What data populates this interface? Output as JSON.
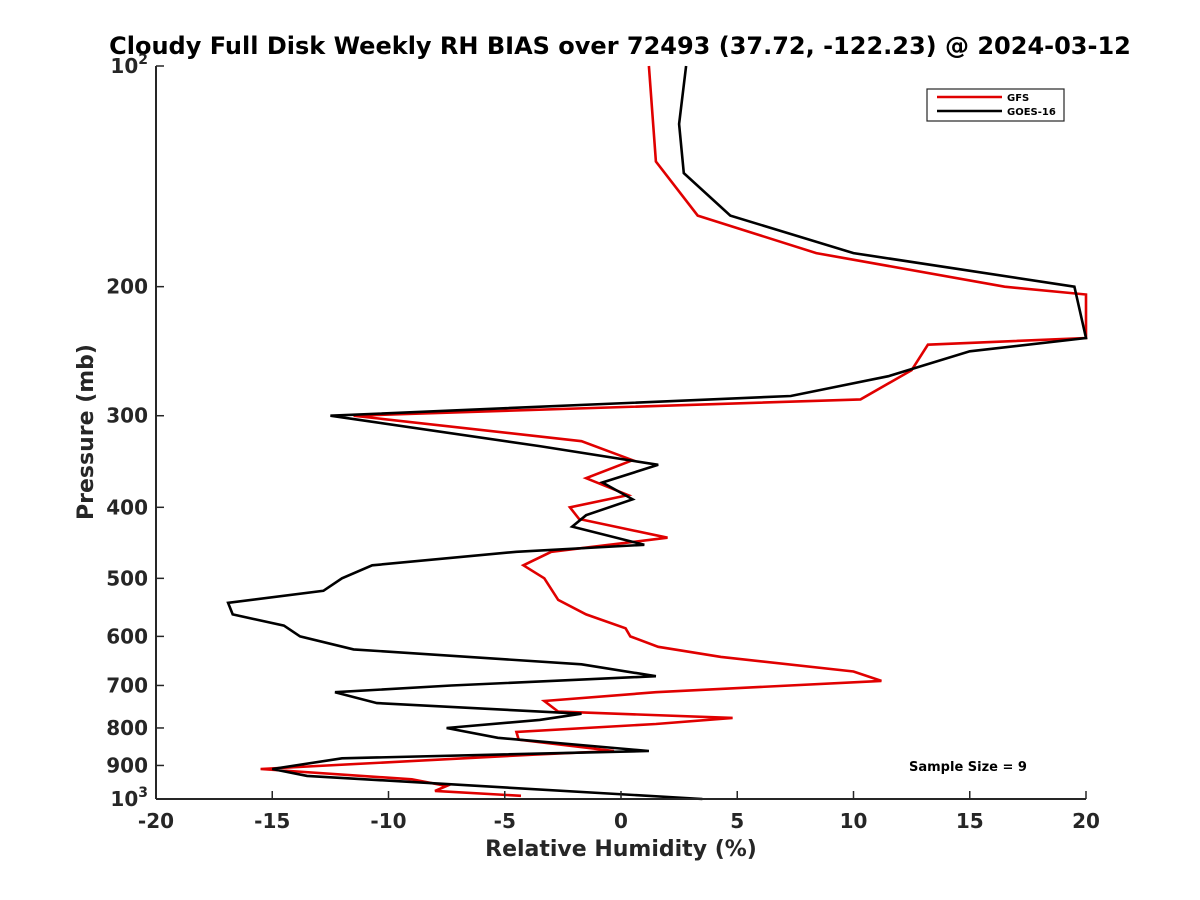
{
  "chart_data": {
    "type": "line",
    "title": "Cloudy Full Disk Weekly RH BIAS over 72493 (37.72, -122.23) @ 2024-03-12",
    "xlabel": "Relative Humidity (%)",
    "ylabel": "Pressure (mb)",
    "xlim": [
      -20,
      20
    ],
    "ylim": [
      100,
      1000
    ],
    "y_scale": "log",
    "y_reversed": true,
    "x_ticks": [
      -20,
      -15,
      -10,
      -5,
      0,
      5,
      10,
      15,
      20
    ],
    "y_ticks": [
      {
        "value": 100,
        "base": "10",
        "exp": "2"
      },
      {
        "value": 200,
        "label": "200"
      },
      {
        "value": 300,
        "label": "300"
      },
      {
        "value": 400,
        "label": "400"
      },
      {
        "value": 500,
        "label": "500"
      },
      {
        "value": 600,
        "label": "600"
      },
      {
        "value": 700,
        "label": "700"
      },
      {
        "value": 800,
        "label": "800"
      },
      {
        "value": 900,
        "label": "900"
      },
      {
        "value": 1000,
        "base": "10",
        "exp": "3"
      }
    ],
    "grid": false,
    "legend_position": "top-right",
    "annotation": "Sample Size = 9",
    "series": [
      {
        "name": "GFS",
        "color": "#e00000",
        "points": [
          [
            1.2,
            100
          ],
          [
            1.5,
            135
          ],
          [
            3.3,
            160
          ],
          [
            8.4,
            180
          ],
          [
            16.5,
            200
          ],
          [
            20.0,
            205
          ],
          [
            20.0,
            235
          ],
          [
            13.2,
            240
          ],
          [
            12.5,
            260
          ],
          [
            10.3,
            285
          ],
          [
            -11.5,
            300
          ],
          [
            -1.7,
            325
          ],
          [
            0.5,
            345
          ],
          [
            -1.5,
            365
          ],
          [
            0.3,
            385
          ],
          [
            -2.2,
            400
          ],
          [
            -1.8,
            415
          ],
          [
            2.0,
            440
          ],
          [
            -3.0,
            460
          ],
          [
            -4.2,
            480
          ],
          [
            -3.3,
            500
          ],
          [
            -2.7,
            535
          ],
          [
            -1.5,
            560
          ],
          [
            0.2,
            585
          ],
          [
            0.4,
            600
          ],
          [
            1.6,
            620
          ],
          [
            4.3,
            640
          ],
          [
            10.0,
            670
          ],
          [
            11.2,
            690
          ],
          [
            1.5,
            715
          ],
          [
            -3.3,
            735
          ],
          [
            -2.7,
            760
          ],
          [
            4.8,
            775
          ],
          [
            1.5,
            790
          ],
          [
            -4.5,
            810
          ],
          [
            -4.4,
            830
          ],
          [
            -0.3,
            860
          ],
          [
            -3.8,
            870
          ],
          [
            -15.5,
            910
          ],
          [
            -9.0,
            940
          ],
          [
            -7.5,
            960
          ],
          [
            -8.0,
            975
          ],
          [
            -4.3,
            990
          ]
        ]
      },
      {
        "name": "GOES-16",
        "color": "#000000",
        "points": [
          [
            2.8,
            100
          ],
          [
            2.5,
            120
          ],
          [
            2.7,
            140
          ],
          [
            4.7,
            160
          ],
          [
            10.0,
            180
          ],
          [
            19.5,
            200
          ],
          [
            20.0,
            235
          ],
          [
            15.0,
            245
          ],
          [
            11.5,
            265
          ],
          [
            7.3,
            282
          ],
          [
            -12.5,
            300
          ],
          [
            -3.5,
            330
          ],
          [
            1.6,
            350
          ],
          [
            -0.8,
            370
          ],
          [
            0.5,
            390
          ],
          [
            -1.5,
            410
          ],
          [
            -2.1,
            425
          ],
          [
            1.0,
            450
          ],
          [
            -4.5,
            460
          ],
          [
            -10.7,
            480
          ],
          [
            -12.0,
            500
          ],
          [
            -12.8,
            520
          ],
          [
            -16.9,
            540
          ],
          [
            -16.7,
            560
          ],
          [
            -14.5,
            580
          ],
          [
            -13.8,
            600
          ],
          [
            -11.5,
            625
          ],
          [
            -1.7,
            655
          ],
          [
            1.5,
            680
          ],
          [
            -7.3,
            700
          ],
          [
            -12.3,
            715
          ],
          [
            -10.5,
            740
          ],
          [
            -1.7,
            765
          ],
          [
            -3.5,
            780
          ],
          [
            -7.5,
            800
          ],
          [
            -5.3,
            825
          ],
          [
            1.2,
            860
          ],
          [
            -12.0,
            880
          ],
          [
            -15.0,
            910
          ],
          [
            -13.5,
            930
          ],
          [
            3.5,
            1000
          ]
        ]
      }
    ]
  }
}
